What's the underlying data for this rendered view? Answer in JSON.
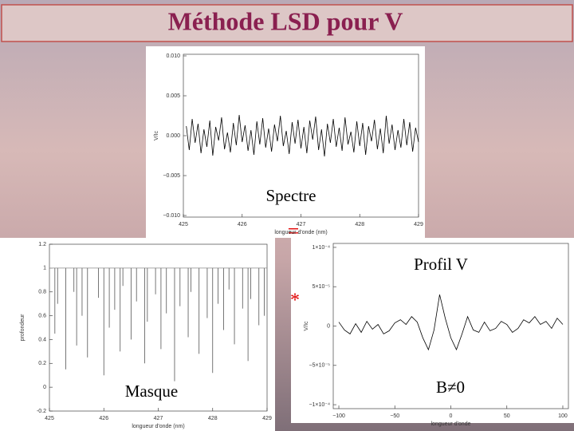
{
  "title": "Méthode LSD pour V",
  "operators": [
    "=",
    "*"
  ],
  "chart_data": [
    {
      "type": "line",
      "annotations": [
        "Spectre"
      ],
      "xlabel": "longueur d'onde (nm)",
      "ylabel": "V/Ic",
      "color": "#000000",
      "xlim": [
        425,
        429
      ],
      "xticks": [
        425,
        426,
        427,
        428,
        429
      ],
      "ylim": [
        -0.0102,
        0.0102
      ],
      "yticks": [
        {
          "value": -0.01,
          "label": "−0.010"
        },
        {
          "value": -0.005,
          "label": "−0.005"
        },
        {
          "value": 0,
          "label": "0.000"
        },
        {
          "value": 0.005,
          "label": "0.005"
        },
        {
          "value": 0.01,
          "label": "0.010"
        }
      ],
      "x": [
        425.05,
        425.1,
        425.15,
        425.2,
        425.25,
        425.3,
        425.35,
        425.4,
        425.45,
        425.5,
        425.55,
        425.6,
        425.65,
        425.7,
        425.75,
        425.8,
        425.85,
        425.9,
        425.95,
        426,
        426.05,
        426.1,
        426.15,
        426.2,
        426.25,
        426.3,
        426.35,
        426.4,
        426.45,
        426.5,
        426.55,
        426.6,
        426.65,
        426.7,
        426.75,
        426.8,
        426.85,
        426.9,
        426.95,
        427,
        427.05,
        427.1,
        427.15,
        427.2,
        427.25,
        427.3,
        427.35,
        427.4,
        427.45,
        427.5,
        427.55,
        427.6,
        427.65,
        427.7,
        427.75,
        427.8,
        427.85,
        427.9,
        427.95,
        428,
        428.05,
        428.1,
        428.15,
        428.2,
        428.25,
        428.3,
        428.35,
        428.4,
        428.45,
        428.5,
        428.55,
        428.6,
        428.65,
        428.7,
        428.75,
        428.8,
        428.85,
        428.9,
        428.95,
        429
      ],
      "values": [
        0.0012,
        -0.0018,
        0.0021,
        -0.0009,
        0.0015,
        -0.0022,
        0.0008,
        -0.0014,
        0.0019,
        -0.0025,
        0.0011,
        -0.0006,
        0.0023,
        -0.0017,
        0.0004,
        -0.0021,
        0.0016,
        -0.0012,
        0.0026,
        -0.0008,
        0.0013,
        -0.0019,
        0.0007,
        -0.0024,
        0.0018,
        -0.0011,
        0.0022,
        -0.0015,
        0.0009,
        -0.002,
        0.0014,
        -0.0007,
        0.0025,
        -0.0013,
        0.0006,
        -0.0023,
        0.0017,
        -0.001,
        0.002,
        -0.0016,
        0.0011,
        -0.0022,
        0.0019,
        -0.0005,
        0.0024,
        -0.0018,
        0.0008,
        -0.0026,
        0.0015,
        -0.0009,
        0.0021,
        -0.0014,
        0.001,
        -0.0019,
        0.0023,
        -0.0011,
        0.0005,
        -0.0021,
        0.0018,
        -0.0013,
        0.0016,
        -0.0024,
        0.0012,
        -0.0007,
        0.002,
        -0.0017,
        0.0009,
        -0.0022,
        0.0025,
        -0.001,
        0.0014,
        -0.0018,
        0.0007,
        -0.0015,
        0.0021,
        -0.0012,
        0.0017,
        -0.002,
        0.001,
        -0.0008
      ]
    },
    {
      "type": "vlines",
      "annotations": [
        "Masque"
      ],
      "xlabel": "longueur d'onde (nm)",
      "ylabel": "profondeur",
      "color": "#555555",
      "continuum": 1,
      "xlim": [
        425,
        429
      ],
      "xticks": [
        425,
        426,
        427,
        428,
        429
      ],
      "ylim": [
        -0.2,
        1.2
      ],
      "yticks": [
        -0.2,
        0,
        0.2,
        0.4,
        0.6,
        0.8,
        1,
        1.2
      ],
      "x": [
        425.1,
        425.15,
        425.3,
        425.45,
        425.5,
        425.6,
        425.7,
        425.9,
        426,
        426.1,
        426.2,
        426.3,
        426.35,
        426.5,
        426.6,
        426.75,
        426.8,
        426.95,
        427.05,
        427.15,
        427.3,
        427.4,
        427.55,
        427.6,
        427.75,
        427.9,
        428,
        428.1,
        428.2,
        428.3,
        428.4,
        428.55,
        428.65,
        428.7,
        428.85,
        428.95
      ],
      "values": [
        0.45,
        0.7,
        0.15,
        0.8,
        0.35,
        0.6,
        0.25,
        0.75,
        0.1,
        0.5,
        0.65,
        0.3,
        0.85,
        0.4,
        0.72,
        0.2,
        0.55,
        0.78,
        0.32,
        0.62,
        0.05,
        0.68,
        0.42,
        0.8,
        0.28,
        0.58,
        0.12,
        0.7,
        0.48,
        0.82,
        0.36,
        0.66,
        0.22,
        0.74,
        0.52,
        0.6
      ]
    },
    {
      "type": "line",
      "annotations": [
        "Profil V",
        "B≠0"
      ],
      "xlabel": "longueur d'onde",
      "ylabel": "V/Ic",
      "color": "#000000",
      "xlim": [
        -105,
        105
      ],
      "xticks": [
        {
          "value": -100,
          "label": "−100"
        },
        {
          "value": -50,
          "label": "−50"
        },
        0,
        50,
        100
      ],
      "ylim": [
        -0.000105,
        0.000105
      ],
      "yticks": [
        {
          "value": -0.0001,
          "label": "−1×10⁻⁴"
        },
        {
          "value": -5e-05,
          "label": "−5×10⁻⁵"
        },
        0,
        {
          "value": 5e-05,
          "label": "5×10⁻⁵"
        },
        {
          "value": 0.0001,
          "label": "1×10⁻⁴"
        }
      ],
      "x": [
        -100,
        -95,
        -90,
        -85,
        -80,
        -75,
        -70,
        -65,
        -60,
        -55,
        -50,
        -45,
        -40,
        -35,
        -30,
        -25,
        -20,
        -15,
        -10,
        -5,
        0,
        5,
        10,
        15,
        20,
        25,
        30,
        35,
        40,
        45,
        50,
        55,
        60,
        65,
        70,
        75,
        80,
        85,
        90,
        95,
        100
      ],
      "values": [
        5e-06,
        -5e-06,
        -1e-05,
        3e-06,
        -8e-06,
        6e-06,
        -4e-06,
        2e-06,
        -1e-05,
        -6e-06,
        4e-06,
        8e-06,
        2e-06,
        1.2e-05,
        5e-06,
        -1.5e-05,
        -3e-05,
        -5e-06,
        4e-05,
        1e-05,
        -1.5e-05,
        -3e-05,
        -1e-05,
        1.2e-05,
        -5e-06,
        -8e-06,
        5e-06,
        -6e-06,
        -3e-06,
        6e-06,
        2e-06,
        -8e-06,
        -3e-06,
        8e-06,
        4e-06,
        1.2e-05,
        2e-06,
        6e-06,
        -3e-06,
        1e-05,
        2e-06
      ]
    }
  ]
}
